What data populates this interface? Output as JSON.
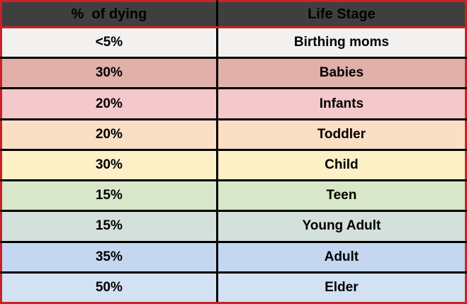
{
  "table": {
    "headers": [
      "%  of dying",
      "Life Stage"
    ],
    "rows": [
      {
        "percent": "<5%",
        "stage": "Birthing moms",
        "color": "#f2f1ef"
      },
      {
        "percent": "30%",
        "stage": "Babies",
        "color": "#e0b0a9"
      },
      {
        "percent": "20%",
        "stage": "Infants",
        "color": "#f3c9cb"
      },
      {
        "percent": "20%",
        "stage": "Toddler",
        "color": "#fbdfc5"
      },
      {
        "percent": "30%",
        "stage": "Child",
        "color": "#fdefc6"
      },
      {
        "percent": "15%",
        "stage": "Teen",
        "color": "#d8e7c9"
      },
      {
        "percent": "15%",
        "stage": "Young Adult",
        "color": "#d4e0dc"
      },
      {
        "percent": "35%",
        "stage": "Adult",
        "color": "#c5d7f0"
      },
      {
        "percent": "50%",
        "stage": "Elder",
        "color": "#d3e2f3"
      }
    ]
  },
  "colors": {
    "outer_border": "#cc2127",
    "inner_border": "#000000",
    "header_bg": "#3f3f3f",
    "header_text": "#000000",
    "cell_text": "#000000"
  },
  "chart_data": {
    "type": "table",
    "title": "",
    "columns": [
      "%  of dying",
      "Life Stage"
    ],
    "rows": [
      [
        "<5%",
        "Birthing moms"
      ],
      [
        "30%",
        "Babies"
      ],
      [
        "20%",
        "Infants"
      ],
      [
        "20%",
        "Toddler"
      ],
      [
        "30%",
        "Child"
      ],
      [
        "15%",
        "Teen"
      ],
      [
        "15%",
        "Young Adult"
      ],
      [
        "35%",
        "Adult"
      ],
      [
        "50%",
        "Elder"
      ]
    ]
  }
}
